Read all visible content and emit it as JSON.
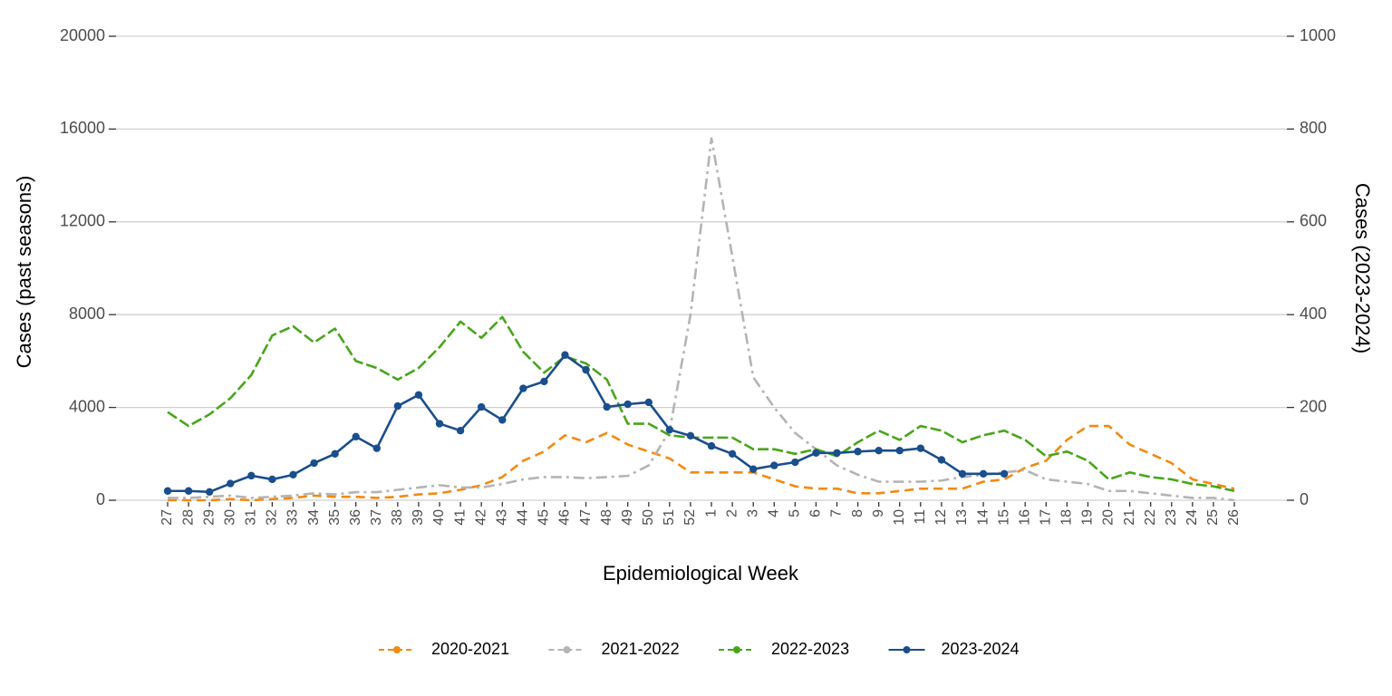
{
  "chart_data": {
    "type": "line",
    "xlabel": "Epidemiological Week",
    "ylabel": "Cases (past seasons)",
    "y2label": "Cases (2023-2024)",
    "categories": [
      "27",
      "28",
      "29",
      "30",
      "31",
      "32",
      "33",
      "34",
      "35",
      "36",
      "37",
      "38",
      "39",
      "40",
      "41",
      "42",
      "43",
      "44",
      "45",
      "46",
      "47",
      "48",
      "49",
      "50",
      "51",
      "52",
      "1",
      "2",
      "3",
      "4",
      "5",
      "6",
      "7",
      "8",
      "9",
      "10",
      "11",
      "12",
      "13",
      "14",
      "15",
      "16",
      "17",
      "18",
      "19",
      "20",
      "21",
      "22",
      "23",
      "24",
      "25",
      "26"
    ],
    "ylim": [
      0,
      20000
    ],
    "yticks": [
      0,
      4000,
      8000,
      12000,
      16000,
      20000
    ],
    "y2lim": [
      0,
      1000
    ],
    "y2ticks": [
      0,
      200,
      400,
      600,
      800,
      1000
    ],
    "grid": true,
    "legend": "bottom",
    "series": [
      {
        "name": "2020-2021",
        "color": "#f28a12",
        "dash": "dashed",
        "markers": false,
        "values": [
          0,
          0,
          0,
          50,
          0,
          50,
          100,
          200,
          150,
          150,
          100,
          150,
          250,
          300,
          450,
          650,
          1000,
          1700,
          2100,
          2800,
          2500,
          2900,
          2400,
          2100,
          1800,
          1200,
          1200,
          1200,
          1200,
          900,
          600,
          500,
          500,
          300,
          300,
          400,
          500,
          500,
          500,
          800,
          900,
          1400,
          1700,
          2600,
          3200,
          3200,
          2400,
          2000,
          1600,
          900,
          700,
          500
        ]
      },
      {
        "name": "2021-2022",
        "color": "#b4b4b4",
        "dash": "dashdot",
        "markers": false,
        "values": [
          100,
          100,
          150,
          200,
          100,
          150,
          200,
          300,
          250,
          350,
          350,
          450,
          550,
          650,
          550,
          550,
          700,
          900,
          1000,
          1000,
          950,
          1000,
          1050,
          1500,
          3000,
          8000,
          15600,
          10500,
          5300,
          4000,
          2900,
          2200,
          1500,
          1100,
          800,
          800,
          800,
          850,
          1000,
          1100,
          1200,
          1300,
          900,
          800,
          700,
          400,
          400,
          300,
          200,
          100,
          100,
          0
        ]
      },
      {
        "name": "2022-2023",
        "color": "#4aa51c",
        "dash": "longdash",
        "markers": false,
        "values": [
          3800,
          3200,
          3700,
          4400,
          5400,
          7100,
          7500,
          6800,
          7400,
          6000,
          5700,
          5200,
          5700,
          6600,
          7700,
          7000,
          7900,
          6400,
          5500,
          6200,
          5900,
          5200,
          3300,
          3300,
          2800,
          2700,
          2700,
          2700,
          2200,
          2200,
          2000,
          2200,
          1900,
          2500,
          3000,
          2600,
          3200,
          3000,
          2500,
          2800,
          3000,
          2600,
          1900,
          2100,
          1700,
          900,
          1200,
          1000,
          900,
          700,
          600,
          400
        ]
      },
      {
        "name": "2023-2024",
        "color": "#1a4e8c",
        "dash": "solid",
        "markers": true,
        "axis": "y2",
        "values": [
          20,
          20,
          18,
          36,
          53,
          45,
          55,
          80,
          100,
          137,
          112,
          203,
          227,
          165,
          150,
          201,
          173,
          241,
          256,
          313,
          281,
          201,
          207,
          211,
          152,
          139,
          117,
          100,
          67,
          75,
          82,
          102,
          102,
          105,
          107,
          107,
          112,
          87,
          57,
          57,
          57,
          null,
          null,
          null,
          null,
          null,
          null,
          null,
          null,
          null,
          null,
          null
        ]
      }
    ]
  }
}
